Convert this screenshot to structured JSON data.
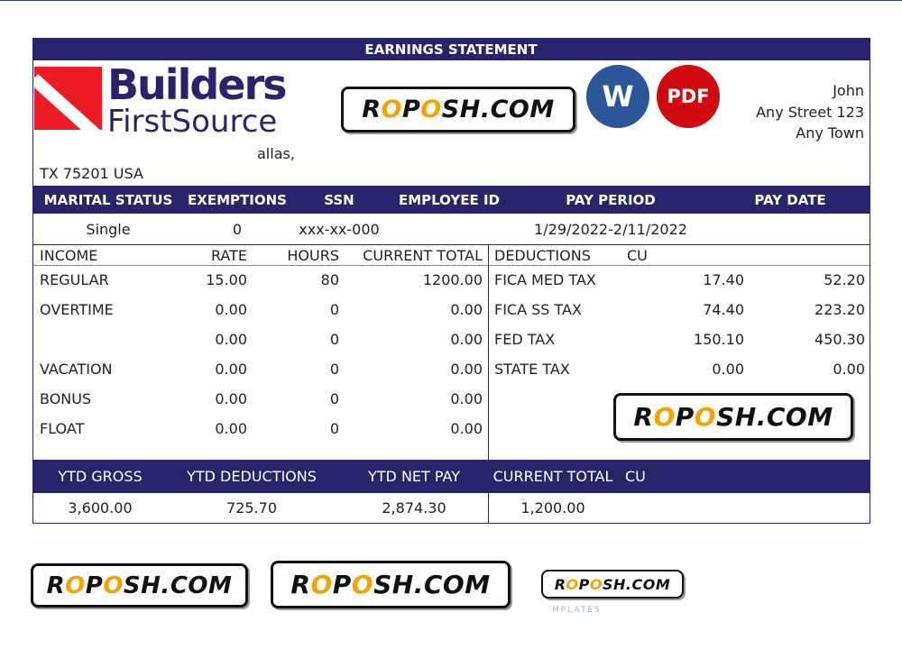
{
  "title": "EARNINGS STATEMENT",
  "company": {
    "logo_word1": "Builders",
    "logo_word2": "FirstSource",
    "address_line1": "allas,",
    "address_line2": "TX 75201 USA"
  },
  "employee": {
    "name": "John",
    "street": "Any Street 123",
    "town": "Any Town"
  },
  "info_headers": [
    "MARITAL STATUS",
    "EXEMPTIONS",
    "SSN",
    "EMPLOYEE ID",
    "PAY PERIOD",
    "PAY DATE"
  ],
  "info_values": [
    "Single",
    "0",
    "xxx-xx-000",
    "",
    "1/29/2022-2/11/2022",
    ""
  ],
  "income": {
    "headers": [
      "INCOME",
      "RATE",
      "HOURS",
      "CURRENT TOTAL"
    ],
    "rows": [
      {
        "label": "REGULAR",
        "rate": "15.00",
        "hours": "80",
        "total": "1200.00"
      },
      {
        "label": "OVERTIME",
        "rate": "0.00",
        "hours": "0",
        "total": "0.00"
      },
      {
        "label": "",
        "rate": "0.00",
        "hours": "0",
        "total": "0.00"
      },
      {
        "label": "VACATION",
        "rate": "0.00",
        "hours": "0",
        "total": "0.00"
      },
      {
        "label": "BONUS",
        "rate": "0.00",
        "hours": "0",
        "total": "0.00"
      },
      {
        "label": "FLOAT",
        "rate": "0.00",
        "hours": "0",
        "total": "0.00"
      }
    ]
  },
  "deductions": {
    "headers": [
      "DEDUCTIONS",
      "CU"
    ],
    "rows": [
      {
        "label": "FICA MED TAX",
        "current": "17.40",
        "ytd": "52.20"
      },
      {
        "label": "FICA SS TAX",
        "current": "74.40",
        "ytd": "223.20"
      },
      {
        "label": "FED TAX",
        "current": "150.10",
        "ytd": "450.30"
      },
      {
        "label": "STATE TAX",
        "current": "0.00",
        "ytd": "0.00"
      }
    ]
  },
  "summary": {
    "headers": [
      "YTD GROSS",
      "YTD DEDUCTIONS",
      "YTD NET PAY",
      "CURRENT TOTAL",
      "CU"
    ],
    "values": [
      "3,600.00",
      "725.70",
      "2,874.30",
      "1,200.00"
    ]
  },
  "badges": {
    "word": "W",
    "pdf": "PDF"
  },
  "watermark": {
    "text": "ROPOSH.COM",
    "subtext": "MPLATES"
  },
  "colors": {
    "navy": "#28246b",
    "logo_red": "#ed1c24",
    "word_blue": "#2b579a",
    "pdf_red": "#d10a10",
    "watermark_orange": "#f5a300"
  }
}
